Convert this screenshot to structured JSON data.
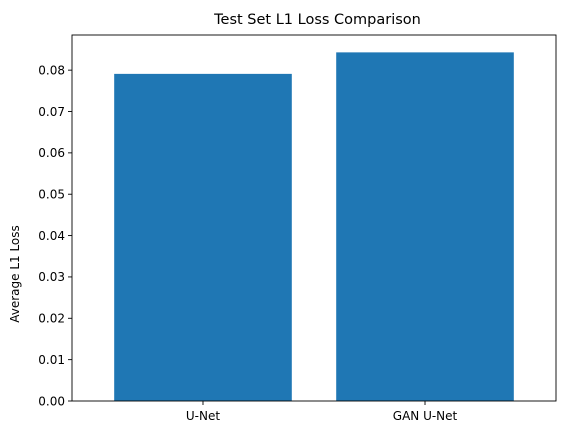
{
  "chart_data": {
    "type": "bar",
    "title": "Test Set L1 Loss Comparison",
    "xlabel": "",
    "ylabel": "Average L1 Loss",
    "categories": [
      "U-Net",
      "GAN U-Net"
    ],
    "values": [
      0.0791,
      0.0843
    ],
    "ylim": [
      0,
      0.0885
    ],
    "yticks": [
      0.0,
      0.01,
      0.02,
      0.03,
      0.04,
      0.05,
      0.06,
      0.07,
      0.08
    ],
    "ytick_labels": [
      "0.00",
      "0.01",
      "0.02",
      "0.03",
      "0.04",
      "0.05",
      "0.06",
      "0.07",
      "0.08"
    ],
    "grid": false,
    "legend": "none",
    "bar_color": "#1f77b4"
  }
}
